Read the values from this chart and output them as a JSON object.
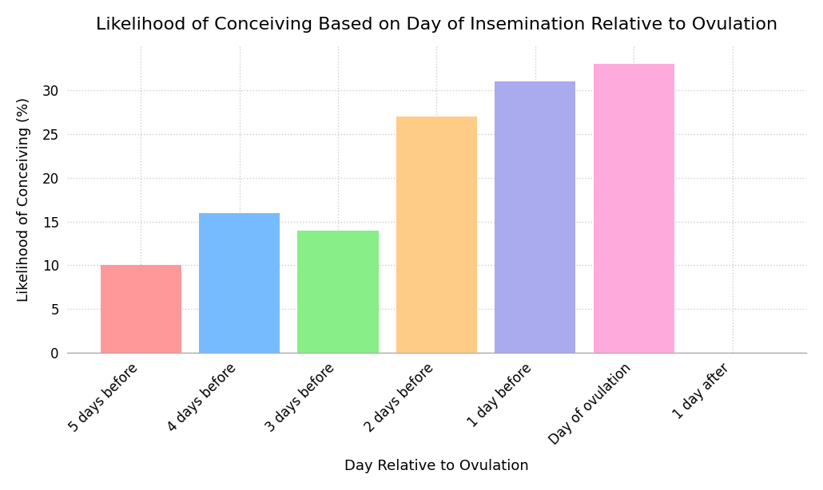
{
  "title": "Likelihood of Conceiving Based on Day of Insemination Relative to Ovulation",
  "xlabel": "Day Relative to Ovulation",
  "ylabel": "Likelihood of Conceiving (%)",
  "categories": [
    "5 days before",
    "4 days before",
    "3 days before",
    "2 days before",
    "1 day before",
    "Day of ovulation",
    "1 day after"
  ],
  "values": [
    10,
    16,
    14,
    27,
    31,
    33,
    0
  ],
  "bar_colors": [
    "#FF9999",
    "#77BBFF",
    "#88EE88",
    "#FFCC88",
    "#AAAAEE",
    "#FFAADD",
    "#FFFFFF"
  ],
  "ylim": [
    0,
    35
  ],
  "yticks": [
    0,
    5,
    10,
    15,
    20,
    25,
    30
  ],
  "title_fontsize": 16,
  "label_fontsize": 13,
  "tick_fontsize": 12,
  "background_color": "#FFFFFF",
  "grid_color": "#CCCCCC",
  "bar_width": 0.82
}
